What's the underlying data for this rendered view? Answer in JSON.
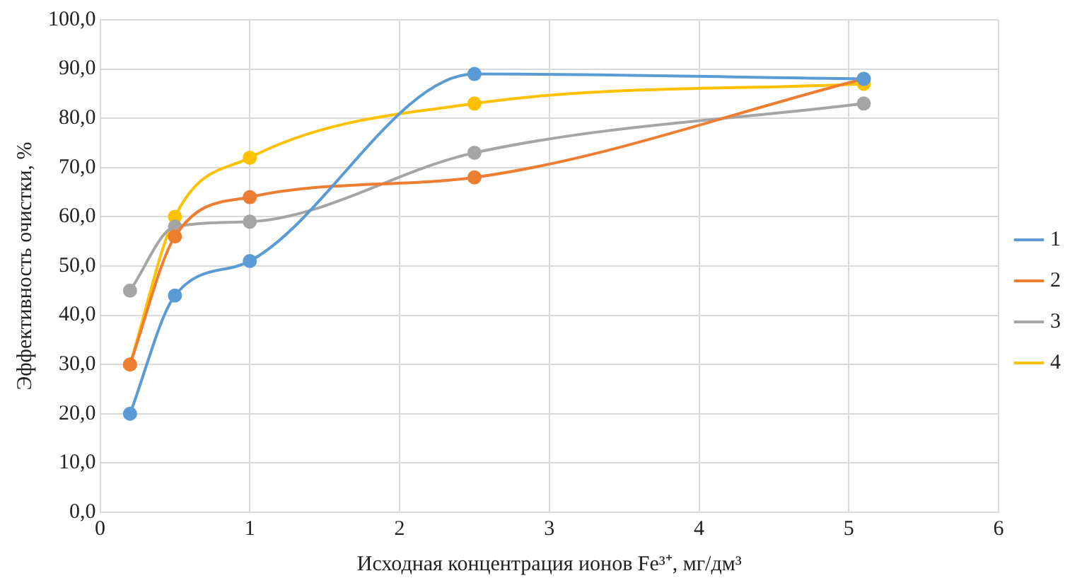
{
  "chart_data": {
    "type": "line",
    "xlabel": "Исходная концентрация ионов Fe³⁺, мг/дм³",
    "ylabel": "Эффективность очистки, %",
    "x": [
      0.2,
      0.5,
      1,
      2.5,
      5.1
    ],
    "series": [
      {
        "name": "1",
        "color": "#5b9bd5",
        "values": [
          20,
          44,
          51,
          89,
          88
        ]
      },
      {
        "name": "2",
        "color": "#ed7d31",
        "values": [
          30,
          56,
          64,
          68,
          88
        ]
      },
      {
        "name": "3",
        "color": "#a5a5a5",
        "values": [
          45,
          58,
          59,
          73,
          83
        ]
      },
      {
        "name": "4",
        "color": "#ffc000",
        "values": [
          30,
          60,
          72,
          83,
          87
        ]
      }
    ],
    "xlim": [
      0,
      6
    ],
    "xticks": [
      0,
      1,
      2,
      3,
      4,
      5,
      6
    ],
    "ylim": [
      0,
      100
    ],
    "yticks": [
      {
        "value": 0,
        "label": "0,0"
      },
      {
        "value": 10,
        "label": "10,0"
      },
      {
        "value": 20,
        "label": "20,0"
      },
      {
        "value": 30,
        "label": "30,0"
      },
      {
        "value": 40,
        "label": "40,0"
      },
      {
        "value": 50,
        "label": "50,0"
      },
      {
        "value": 60,
        "label": "60,0"
      },
      {
        "value": 70,
        "label": "70,0"
      },
      {
        "value": 80,
        "label": "80,0"
      },
      {
        "value": 90,
        "label": "90,0"
      },
      {
        "value": 100,
        "label": "100,0"
      }
    ],
    "grid": true,
    "legend": "right",
    "marker": "circle",
    "line_style": "solid"
  }
}
